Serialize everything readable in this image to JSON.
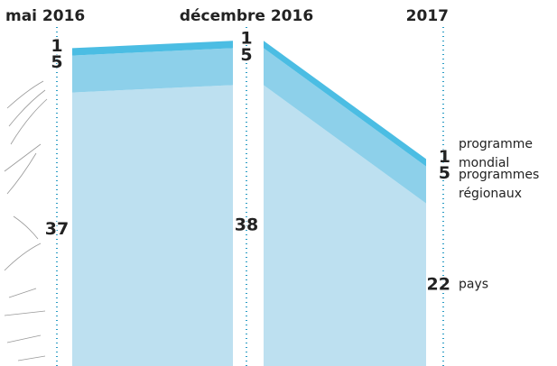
{
  "chart_data": {
    "type": "area",
    "stacked": true,
    "categories": [
      "mai 2016",
      "décembre 2016",
      "2017"
    ],
    "series": [
      {
        "name": "pays",
        "color": "#bde0f0",
        "values": [
          37,
          38,
          22
        ]
      },
      {
        "name": "programmes régionaux",
        "color": "#8dd0ea",
        "values": [
          5,
          5,
          5
        ]
      },
      {
        "name": "programme mondial",
        "color": "#4bbde3",
        "values": [
          1,
          1,
          1
        ]
      }
    ]
  }
}
